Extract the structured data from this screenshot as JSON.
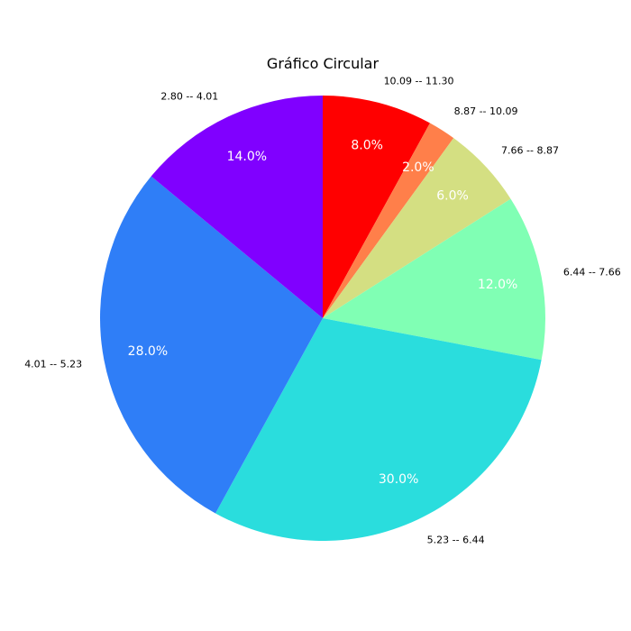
{
  "chart_data": {
    "type": "pie",
    "title": "Gráfico Circular",
    "start_angle_deg": 90,
    "direction": "clockwise",
    "slices": [
      {
        "label": "10.09 -- 11.30",
        "value": 8.0,
        "pct_label": "8.0%",
        "color": "#ff0000"
      },
      {
        "label": "8.87 -- 10.09",
        "value": 2.0,
        "pct_label": "2.0%",
        "color": "#ff7f4a"
      },
      {
        "label": "7.66 -- 8.87",
        "value": 6.0,
        "pct_label": "6.0%",
        "color": "#d4df82"
      },
      {
        "label": "6.44 -- 7.66",
        "value": 12.0,
        "pct_label": "12.0%",
        "color": "#80ffb4"
      },
      {
        "label": "5.23 -- 6.44",
        "value": 30.0,
        "pct_label": "30.0%",
        "color": "#2adddd"
      },
      {
        "label": "4.01 -- 5.23",
        "value": 28.0,
        "pct_label": "28.0%",
        "color": "#2f7ef7"
      },
      {
        "label": "2.80 -- 4.01",
        "value": 14.0,
        "pct_label": "14.0%",
        "color": "#8000ff"
      }
    ]
  }
}
